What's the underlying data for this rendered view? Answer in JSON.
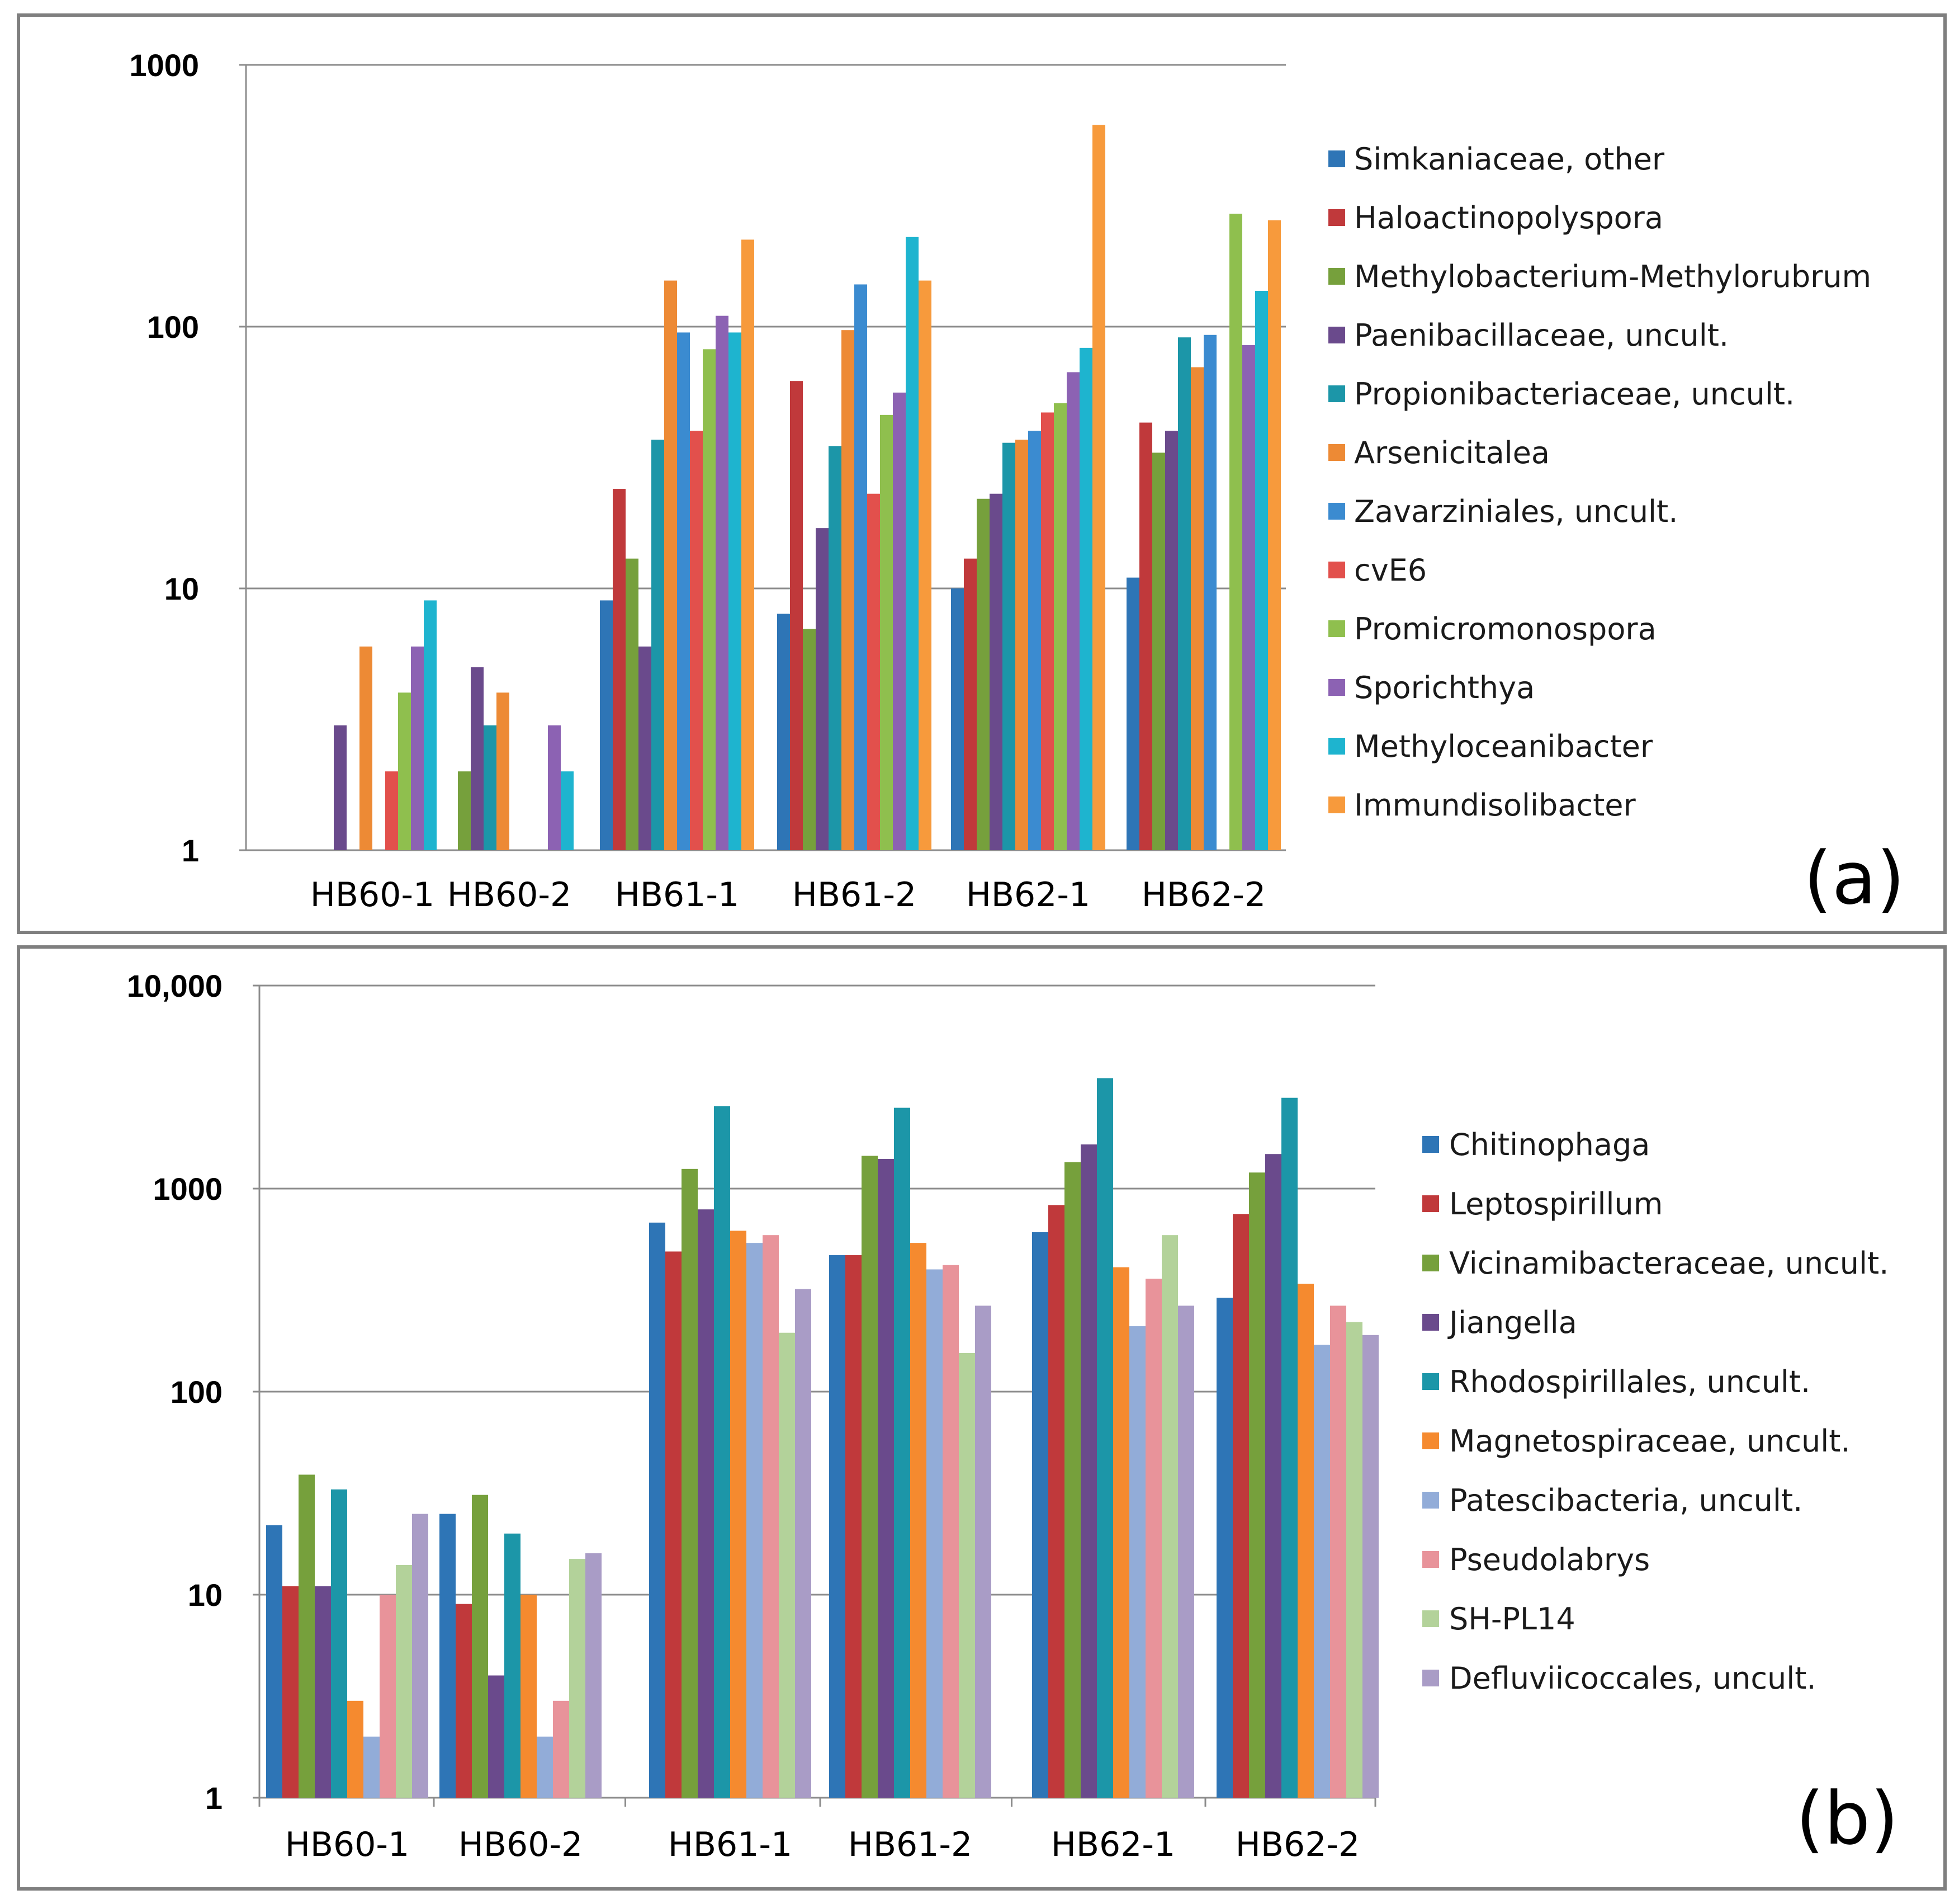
{
  "chart_data": [
    {
      "type": "bar",
      "panel_label": "(a)",
      "title": "",
      "xlabel": "",
      "ylabel": "",
      "yscale": "log",
      "ylim": [
        1,
        1000
      ],
      "yticks": [
        1,
        10,
        100,
        1000
      ],
      "ytick_labels": [
        "1",
        "10",
        "100",
        "1000"
      ],
      "grid": true,
      "legend_position": "right",
      "categories": [
        "HB60-1",
        "HB60-2",
        "HB61-1",
        "HB61-2",
        "HB62-1",
        "HB62-2"
      ],
      "series": [
        {
          "name": "Simkaniaceae, other",
          "color": "#2e75b6",
          "values": [
            null,
            null,
            9,
            8,
            10,
            11
          ]
        },
        {
          "name": "Haloactinopolyspora",
          "color": "#c0393b",
          "values": [
            null,
            null,
            24,
            62,
            13,
            43
          ]
        },
        {
          "name": "Methylobacterium-Methylorubrum",
          "color": "#76a03c",
          "values": [
            null,
            2,
            13,
            7,
            22,
            33
          ]
        },
        {
          "name": "Paenibacillaceae, uncult.",
          "color": "#6a4a8c",
          "values": [
            3,
            5,
            6,
            17,
            23,
            40
          ]
        },
        {
          "name": "Propionibacteriaceae, uncult.",
          "color": "#1c96a8",
          "values": [
            null,
            3,
            37,
            35,
            36,
            91
          ]
        },
        {
          "name": "Arsenicitalea",
          "color": "#ed8a35",
          "values": [
            6,
            4,
            150,
            97,
            37,
            70
          ]
        },
        {
          "name": "Zavarziniales, uncult.",
          "color": "#3b8bd0",
          "values": [
            null,
            null,
            95,
            145,
            40,
            93
          ]
        },
        {
          "name": "cvE6",
          "color": "#e2504c",
          "values": [
            2,
            null,
            40,
            23,
            47,
            null
          ]
        },
        {
          "name": "Promicromonospora",
          "color": "#8fbf4e",
          "values": [
            4,
            null,
            82,
            46,
            51,
            270
          ]
        },
        {
          "name": "Sporichthya",
          "color": "#8c62b3",
          "values": [
            6,
            3,
            110,
            56,
            67,
            85
          ]
        },
        {
          "name": "Methyloceanibacter",
          "color": "#1eb4cf",
          "values": [
            9,
            2,
            95,
            220,
            83,
            137
          ]
        },
        {
          "name": "Immundisolibacter",
          "color": "#f79a3c",
          "values": [
            null,
            null,
            215,
            150,
            590,
            255
          ]
        }
      ]
    },
    {
      "type": "bar",
      "panel_label": "(b)",
      "title": "",
      "xlabel": "",
      "ylabel": "",
      "yscale": "log",
      "ylim": [
        1,
        10000
      ],
      "yticks": [
        1,
        10,
        100,
        1000,
        10000
      ],
      "ytick_labels": [
        "1",
        "10",
        "100",
        "1000",
        "10,000"
      ],
      "grid": true,
      "legend_position": "right",
      "categories": [
        "HB60-1",
        "HB60-2",
        "HB61-1",
        "HB61-2",
        "HB62-1",
        "HB62-2"
      ],
      "series": [
        {
          "name": "Chitinophaga",
          "color": "#2e75b6",
          "values": [
            22,
            25,
            680,
            470,
            610,
            290
          ]
        },
        {
          "name": "Leptospirillum",
          "color": "#c0393b",
          "values": [
            11,
            9,
            490,
            470,
            830,
            750
          ]
        },
        {
          "name": "Vicinamibacteraceae, uncult.",
          "color": "#76a03c",
          "values": [
            39,
            31,
            1250,
            1450,
            1350,
            1200
          ]
        },
        {
          "name": "Jiangella",
          "color": "#6a4a8c",
          "values": [
            11,
            4,
            790,
            1400,
            1650,
            1480
          ]
        },
        {
          "name": "Rhodospirillales, uncult.",
          "color": "#1c96a8",
          "values": [
            33,
            20,
            2550,
            2500,
            3500,
            2800
          ]
        },
        {
          "name": "Magnetospiraceae, uncult.",
          "color": "#f58a2f",
          "values": [
            3,
            10,
            620,
            540,
            410,
            340
          ]
        },
        {
          "name": "Patescibacteria, uncult.",
          "color": "#92acd8",
          "values": [
            2,
            2,
            540,
            400,
            210,
            170
          ]
        },
        {
          "name": "Pseudolabrys",
          "color": "#e8939a",
          "values": [
            10,
            3,
            590,
            420,
            360,
            265
          ]
        },
        {
          "name": "SH-PL14",
          "color": "#b3d29a",
          "values": [
            14,
            15,
            195,
            155,
            590,
            220
          ]
        },
        {
          "name": "Defluviicoccales, uncult.",
          "color": "#a99cc6",
          "values": [
            25,
            16,
            320,
            265,
            265,
            190
          ]
        }
      ]
    }
  ]
}
